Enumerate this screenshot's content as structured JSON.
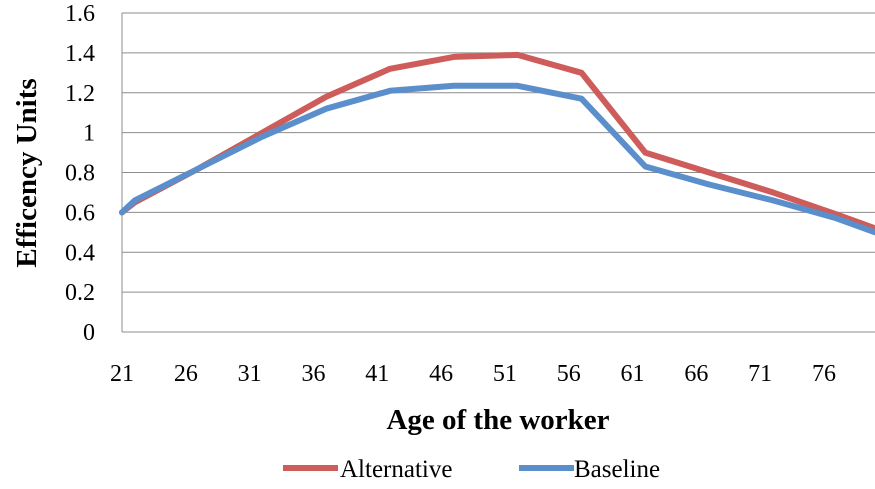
{
  "chart_data": {
    "type": "line",
    "xlabel": "Age of the worker",
    "ylabel": "Efficency Units",
    "ylim": [
      0,
      1.6
    ],
    "xlim": [
      21,
      80
    ],
    "yticks": [
      "0",
      "0.2",
      "0.4",
      "0.6",
      "0.8",
      "1",
      "1.2",
      "1.4",
      "1.6"
    ],
    "xticks": [
      "21",
      "26",
      "31",
      "36",
      "41",
      "46",
      "51",
      "56",
      "61",
      "66",
      "71",
      "76"
    ],
    "grid": "horizontal",
    "legend_position": "bottom",
    "series": [
      {
        "name": "Alternative",
        "color": "#cd5c5a",
        "x": [
          21,
          22,
          27,
          32,
          37,
          42,
          47,
          52,
          57,
          62,
          67,
          72,
          77,
          80
        ],
        "values": [
          0.6,
          0.65,
          0.82,
          1.0,
          1.18,
          1.32,
          1.38,
          1.39,
          1.3,
          0.9,
          0.8,
          0.7,
          0.59,
          0.52
        ]
      },
      {
        "name": "Baseline",
        "color": "#5b8fcb",
        "x": [
          21,
          22,
          27,
          32,
          37,
          42,
          47,
          52,
          57,
          62,
          67,
          72,
          77,
          80
        ],
        "values": [
          0.6,
          0.66,
          0.82,
          0.98,
          1.12,
          1.21,
          1.235,
          1.235,
          1.17,
          0.83,
          0.74,
          0.66,
          0.57,
          0.5
        ]
      }
    ]
  }
}
